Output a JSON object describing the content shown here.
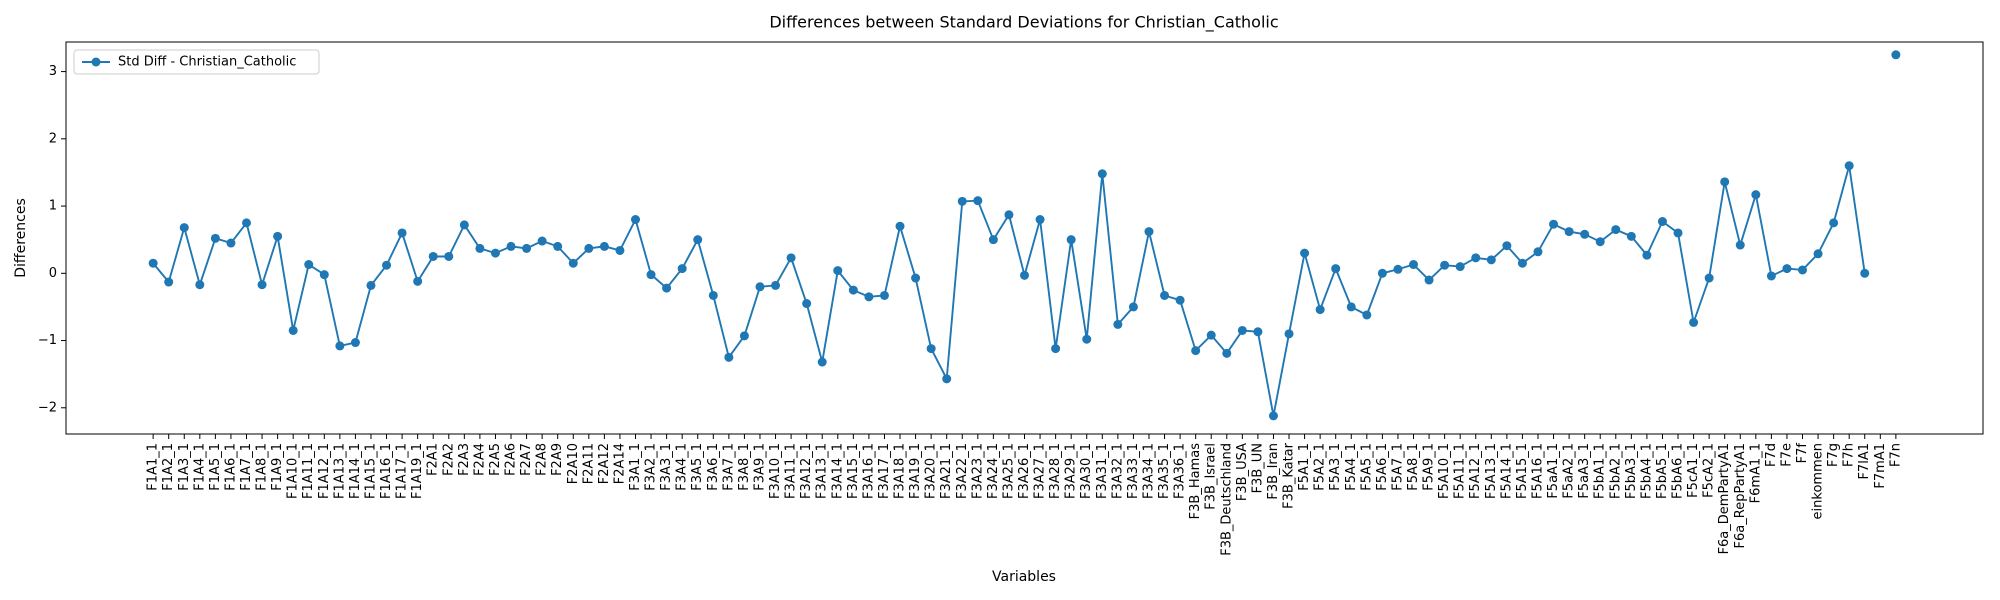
{
  "chart_data": {
    "type": "line",
    "title": "Differences between Standard Deviations for Christian_Catholic",
    "x_label": "Variables",
    "y_label": "Differences",
    "categories": [
      "F1A1_1",
      "F1A2_1",
      "F1A3_1",
      "F1A4_1",
      "F1A5_1",
      "F1A6_1",
      "F1A7_1",
      "F1A8_1",
      "F1A9_1",
      "F1A10_1",
      "F1A11_1",
      "F1A12_1",
      "F1A13_1",
      "F1A14_1",
      "F1A15_1",
      "F1A16_1",
      "F1A17_1",
      "F1A19_1",
      "F2A1",
      "F2A2",
      "F2A3",
      "F2A4",
      "F2A5",
      "F2A6",
      "F2A7",
      "F2A8",
      "F2A9",
      "F2A10",
      "F2A11",
      "F2A12",
      "F2A14",
      "F3A1_1",
      "F3A2_1",
      "F3A3_1",
      "F3A4_1",
      "F3A5_1",
      "F3A6_1",
      "F3A7_1",
      "F3A8_1",
      "F3A9_1",
      "F3A10_1",
      "F3A11_1",
      "F3A12_1",
      "F3A13_1",
      "F3A14_1",
      "F3A15_1",
      "F3A16_1",
      "F3A17_1",
      "F3A18_1",
      "F3A19_1",
      "F3A20_1",
      "F3A21_1",
      "F3A22_1",
      "F3A23_1",
      "F3A24_1",
      "F3A25_1",
      "F3A26_1",
      "F3A27_1",
      "F3A28_1",
      "F3A29_1",
      "F3A30_1",
      "F3A31_1",
      "F3A32_1",
      "F3A33_1",
      "F3A34_1",
      "F3A35_1",
      "F3A36_1",
      "F3B_Hamas",
      "F3B_Israel",
      "F3B_Deutschland",
      "F3B_USA",
      "F3B_UN",
      "F3B_Iran",
      "F3B_Katar",
      "F5A1_1",
      "F5A2_1",
      "F5A3_1",
      "F5A4_1",
      "F5A5_1",
      "F5A6_1",
      "F5A7_1",
      "F5A8_1",
      "F5A9_1",
      "F5A10_1",
      "F5A11_1",
      "F5A12_1",
      "F5A13_1",
      "F5A14_1",
      "F5A15_1",
      "F5A16_1",
      "F5aA1_1",
      "F5aA2_1",
      "F5aA3_1",
      "F5bA1_1",
      "F5bA2_1",
      "F5bA3_1",
      "F5bA4_1",
      "F5bA5_1",
      "F5bA6_1",
      "F5cA1_1",
      "F5cA2_1",
      "F6a_DemPartyA1",
      "F6a_RepPartyA1",
      "F6mA1_1",
      "F7d",
      "F7e",
      "F7f",
      "einkommen",
      "F7g",
      "F7h",
      "F7lA1",
      "F7mA1",
      "F7n"
    ],
    "series": [
      {
        "name": "Std Diff - Christian_Catholic",
        "color": "#1f77b4",
        "values": [
          0.15,
          -0.13,
          0.68,
          -0.17,
          0.52,
          0.45,
          0.75,
          -0.17,
          0.55,
          -0.85,
          0.13,
          -0.02,
          -1.08,
          -1.03,
          -0.18,
          0.12,
          0.6,
          -0.12,
          0.25,
          0.25,
          0.72,
          0.37,
          0.3,
          0.4,
          0.37,
          0.48,
          0.4,
          0.15,
          0.37,
          0.4,
          0.34,
          0.8,
          -0.02,
          -0.22,
          0.07,
          0.5,
          -0.33,
          -1.25,
          -0.93,
          -0.2,
          -0.18,
          0.23,
          -0.45,
          -1.32,
          0.04,
          -0.25,
          -0.35,
          -0.33,
          0.7,
          -0.07,
          -1.12,
          -1.57,
          1.07,
          1.08,
          0.5,
          0.87,
          -0.03,
          0.8,
          -1.12,
          0.5,
          -0.98,
          1.48,
          -0.76,
          -0.5,
          0.62,
          -0.33,
          -0.4,
          -1.15,
          -0.92,
          -1.19,
          -0.85,
          -0.87,
          -2.12,
          -0.9,
          0.3,
          -0.54,
          0.07,
          -0.5,
          -0.62,
          0.0,
          0.06,
          0.13,
          -0.1,
          0.12,
          0.1,
          0.23,
          0.2,
          0.41,
          0.15,
          0.32,
          0.73,
          0.62,
          0.58,
          0.47,
          0.65,
          0.55,
          0.27,
          0.77,
          0.6,
          -0.73,
          -0.07,
          1.36,
          0.42,
          1.17,
          -0.04,
          0.07,
          0.05,
          0.29,
          0.75,
          1.6,
          0.0,
          null,
          3.25
        ]
      }
    ],
    "ylim": [
      -2.39,
      3.44
    ],
    "yticks": [
      {
        "value": -2,
        "label": "−2"
      },
      {
        "value": -1,
        "label": "−1"
      },
      0,
      1,
      2,
      3
    ],
    "grid": false,
    "legend": "upper left"
  }
}
